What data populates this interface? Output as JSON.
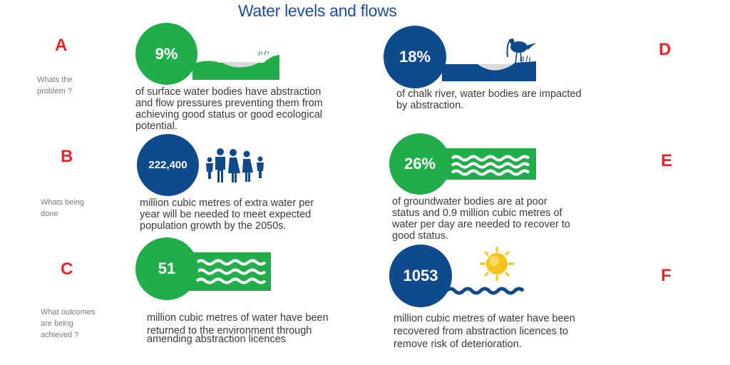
{
  "title": "Water levels and flows",
  "colors": {
    "green": "#21ad49",
    "navy": "#0e4a8c",
    "red": "#e8252a",
    "sun": "#f7c21b"
  },
  "rows": [
    {
      "letter": "A",
      "side_label": [
        "Whats  the",
        "problem ?"
      ]
    },
    {
      "letter": "B",
      "side_label": [
        "Whats  being",
        "done"
      ]
    },
    {
      "letter": "C",
      "side_label": [
        "What outcomes",
        "are being",
        "achieved ?"
      ]
    }
  ],
  "right_letters": [
    "D",
    "E",
    "F"
  ],
  "cards": {
    "a": {
      "value": "9%",
      "icon": "landscape-lake-icon",
      "lines": [
        "of surface water bodies have abstraction",
        "and flow pressures preventing them from",
        "achieving good status or good ecological",
        "potential."
      ]
    },
    "d": {
      "value": "18%",
      "icon": "wading-bird-riverbank-icon",
      "lines": [
        "of chalk river, water bodies are impacted",
        "by abstraction."
      ]
    },
    "b": {
      "value": "222,400",
      "icon": "people-group-icon",
      "lines": [
        "million cubic metres of extra water per",
        "year will be needed to meet expected",
        "population growth by the 2050s."
      ]
    },
    "e": {
      "value": "26%",
      "icon": "water-waves-icon",
      "lines": [
        "of groundwater bodies are at poor",
        "status and 0.9 million cubic metres of",
        "water per day are needed to recover to",
        "good status."
      ]
    },
    "c": {
      "value": "51",
      "icon": "water-waves-icon",
      "lines": [
        "million cubic metres of water have been",
        "returned to the environment through",
        "amending abstraction licences"
      ]
    },
    "f": {
      "value": "1053",
      "icon": "sun-and-wave-icon",
      "lines": [
        "million cubic metres of water have been",
        "recovered from abstraction licences to",
        "remove risk of deterioration."
      ]
    }
  }
}
